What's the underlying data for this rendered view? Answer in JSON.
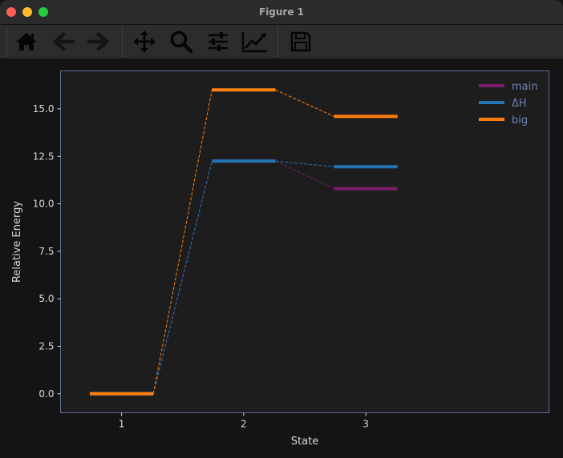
{
  "window": {
    "title": "Figure 1"
  },
  "toolbar": {
    "tools": [
      "home-icon",
      "back-arrow-icon",
      "forward-arrow-icon",
      "pan-icon",
      "zoom-icon",
      "configure-subplots-icon",
      "edit-axis-icon",
      "save-icon"
    ]
  },
  "chart_data": {
    "type": "line",
    "xlabel": "State",
    "ylabel": "Relative Energy",
    "xlim": [
      0.5,
      4.5
    ],
    "ylim": [
      -1.0,
      17.0
    ],
    "xticks": [
      1,
      2,
      3
    ],
    "xtick_labels": [
      "1",
      "2",
      "3"
    ],
    "yticks": [
      0.0,
      2.5,
      5.0,
      7.5,
      10.0,
      12.5,
      15.0
    ],
    "ytick_labels": [
      "0.0",
      "2.5",
      "5.0",
      "7.5",
      "10.0",
      "12.5",
      "15.0"
    ],
    "level_halfwidth": 0.26,
    "legend_position": "top-right",
    "grid": false,
    "series": [
      {
        "name": "main",
        "color": "#7b1d6b",
        "x": [
          1,
          2,
          3
        ],
        "values": [
          0.0,
          12.25,
          10.8
        ]
      },
      {
        "name": "ΔH",
        "color": "#2474b5",
        "x": [
          1,
          2,
          3
        ],
        "values": [
          0.0,
          12.25,
          11.95
        ]
      },
      {
        "name": "big",
        "color": "#ff7f0e",
        "x": [
          1,
          2,
          3
        ],
        "values": [
          0.0,
          16.0,
          14.6
        ]
      }
    ]
  }
}
